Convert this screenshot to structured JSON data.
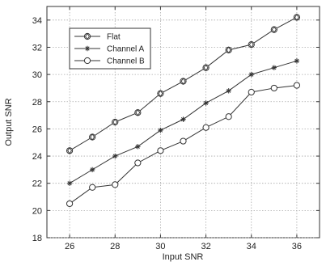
{
  "chart_data": {
    "type": "line",
    "xlabel": "Input SNR",
    "ylabel": "Output SNR",
    "xlim": [
      25,
      37
    ],
    "ylim": [
      18,
      35
    ],
    "xticks": [
      26,
      28,
      30,
      32,
      34,
      36
    ],
    "yticks": [
      18,
      20,
      22,
      24,
      26,
      28,
      30,
      32,
      34
    ],
    "grid": true,
    "legend_position": "top-left",
    "x": [
      26,
      27,
      28,
      29,
      30,
      31,
      32,
      33,
      34,
      35,
      36
    ],
    "series": [
      {
        "name": "Flat",
        "marker": "diamond-in-circle",
        "values": [
          24.4,
          25.4,
          26.5,
          27.2,
          28.6,
          29.5,
          30.5,
          31.8,
          32.2,
          33.3,
          34.2
        ]
      },
      {
        "name": "Channel A",
        "marker": "star",
        "values": [
          22.0,
          23.0,
          24.0,
          24.7,
          25.9,
          26.7,
          27.9,
          28.8,
          30.0,
          30.5,
          31.0
        ]
      },
      {
        "name": "Channel B",
        "marker": "circle",
        "values": [
          20.5,
          21.7,
          21.9,
          23.5,
          24.4,
          25.1,
          26.1,
          26.9,
          28.7,
          29.0,
          29.2
        ]
      }
    ],
    "line_color": "#333333"
  }
}
